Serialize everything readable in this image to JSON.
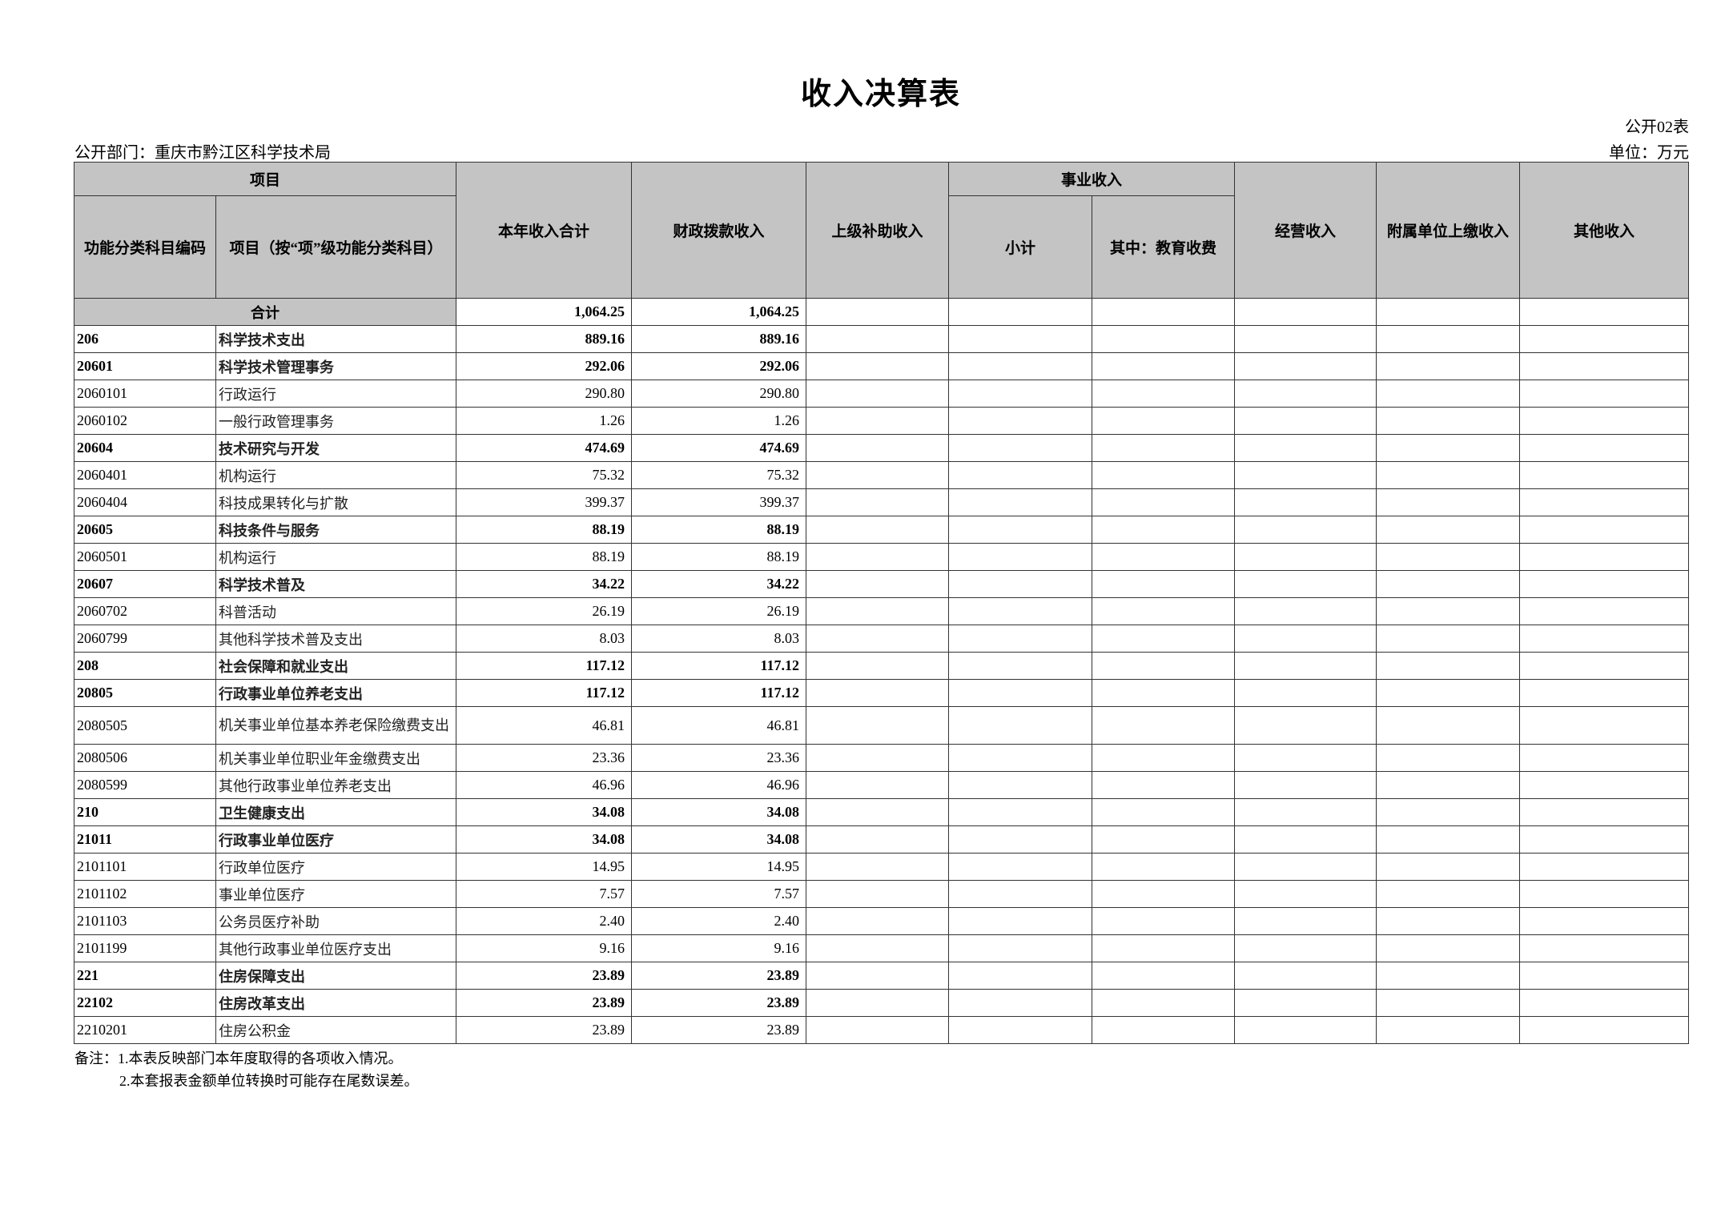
{
  "title": "收入决算表",
  "form_no": "公开02表",
  "department": "公开部门：重庆市黔江区科学技术局",
  "unit": "单位：万元",
  "headers": {
    "project": "项目",
    "code": "功能分类科目编码",
    "name": "项目（按“项”级功能分类科目）",
    "total": "本年收入合计",
    "fiscal": "财政拨款收入",
    "superior": "上级补助收入",
    "business": "事业收入",
    "subtotal": "小计",
    "education": "其中：教育收费",
    "operating": "经营收入",
    "affiliated": "附属单位上缴收入",
    "other": "其他收入"
  },
  "total_row": {
    "label": "合计",
    "total": "1,064.25",
    "fiscal": "1,064.25"
  },
  "rows": [
    {
      "code": "206",
      "name": "科学技术支出",
      "total": "889.16",
      "fiscal": "889.16",
      "bold": true
    },
    {
      "code": "20601",
      "name": "科学技术管理事务",
      "total": "292.06",
      "fiscal": "292.06",
      "bold": true
    },
    {
      "code": "2060101",
      "name": "行政运行",
      "total": "290.80",
      "fiscal": "290.80",
      "bold": false
    },
    {
      "code": "2060102",
      "name": "一般行政管理事务",
      "total": "1.26",
      "fiscal": "1.26",
      "bold": false
    },
    {
      "code": "20604",
      "name": "技术研究与开发",
      "total": "474.69",
      "fiscal": "474.69",
      "bold": true
    },
    {
      "code": "2060401",
      "name": "机构运行",
      "total": "75.32",
      "fiscal": "75.32",
      "bold": false
    },
    {
      "code": "2060404",
      "name": "科技成果转化与扩散",
      "total": "399.37",
      "fiscal": "399.37",
      "bold": false
    },
    {
      "code": "20605",
      "name": "科技条件与服务",
      "total": "88.19",
      "fiscal": "88.19",
      "bold": true
    },
    {
      "code": "2060501",
      "name": "机构运行",
      "total": "88.19",
      "fiscal": "88.19",
      "bold": false
    },
    {
      "code": "20607",
      "name": "科学技术普及",
      "total": "34.22",
      "fiscal": "34.22",
      "bold": true
    },
    {
      "code": "2060702",
      "name": "科普活动",
      "total": "26.19",
      "fiscal": "26.19",
      "bold": false
    },
    {
      "code": "2060799",
      "name": "其他科学技术普及支出",
      "total": "8.03",
      "fiscal": "8.03",
      "bold": false
    },
    {
      "code": "208",
      "name": "社会保障和就业支出",
      "total": "117.12",
      "fiscal": "117.12",
      "bold": true
    },
    {
      "code": "20805",
      "name": "行政事业单位养老支出",
      "total": "117.12",
      "fiscal": "117.12",
      "bold": true
    },
    {
      "code": "2080505",
      "name": "机关事业单位基本养老保险缴费支出",
      "total": "46.81",
      "fiscal": "46.81",
      "bold": false,
      "tall": true
    },
    {
      "code": "2080506",
      "name": "机关事业单位职业年金缴费支出",
      "total": "23.36",
      "fiscal": "23.36",
      "bold": false
    },
    {
      "code": "2080599",
      "name": "其他行政事业单位养老支出",
      "total": "46.96",
      "fiscal": "46.96",
      "bold": false
    },
    {
      "code": "210",
      "name": "卫生健康支出",
      "total": "34.08",
      "fiscal": "34.08",
      "bold": true
    },
    {
      "code": "21011",
      "name": "行政事业单位医疗",
      "total": "34.08",
      "fiscal": "34.08",
      "bold": true
    },
    {
      "code": "2101101",
      "name": "行政单位医疗",
      "total": "14.95",
      "fiscal": "14.95",
      "bold": false
    },
    {
      "code": "2101102",
      "name": "事业单位医疗",
      "total": "7.57",
      "fiscal": "7.57",
      "bold": false
    },
    {
      "code": "2101103",
      "name": "公务员医疗补助",
      "total": "2.40",
      "fiscal": "2.40",
      "bold": false
    },
    {
      "code": "2101199",
      "name": "其他行政事业单位医疗支出",
      "total": "9.16",
      "fiscal": "9.16",
      "bold": false
    },
    {
      "code": "221",
      "name": "住房保障支出",
      "total": "23.89",
      "fiscal": "23.89",
      "bold": true
    },
    {
      "code": "22102",
      "name": "住房改革支出",
      "total": "23.89",
      "fiscal": "23.89",
      "bold": true
    },
    {
      "code": "2210201",
      "name": "住房公积金",
      "total": "23.89",
      "fiscal": "23.89",
      "bold": false
    }
  ],
  "notes": [
    "备注：1.本表反映部门本年度取得的各项收入情况。",
    "2.本套报表金额单位转换时可能存在尾数误差。"
  ]
}
